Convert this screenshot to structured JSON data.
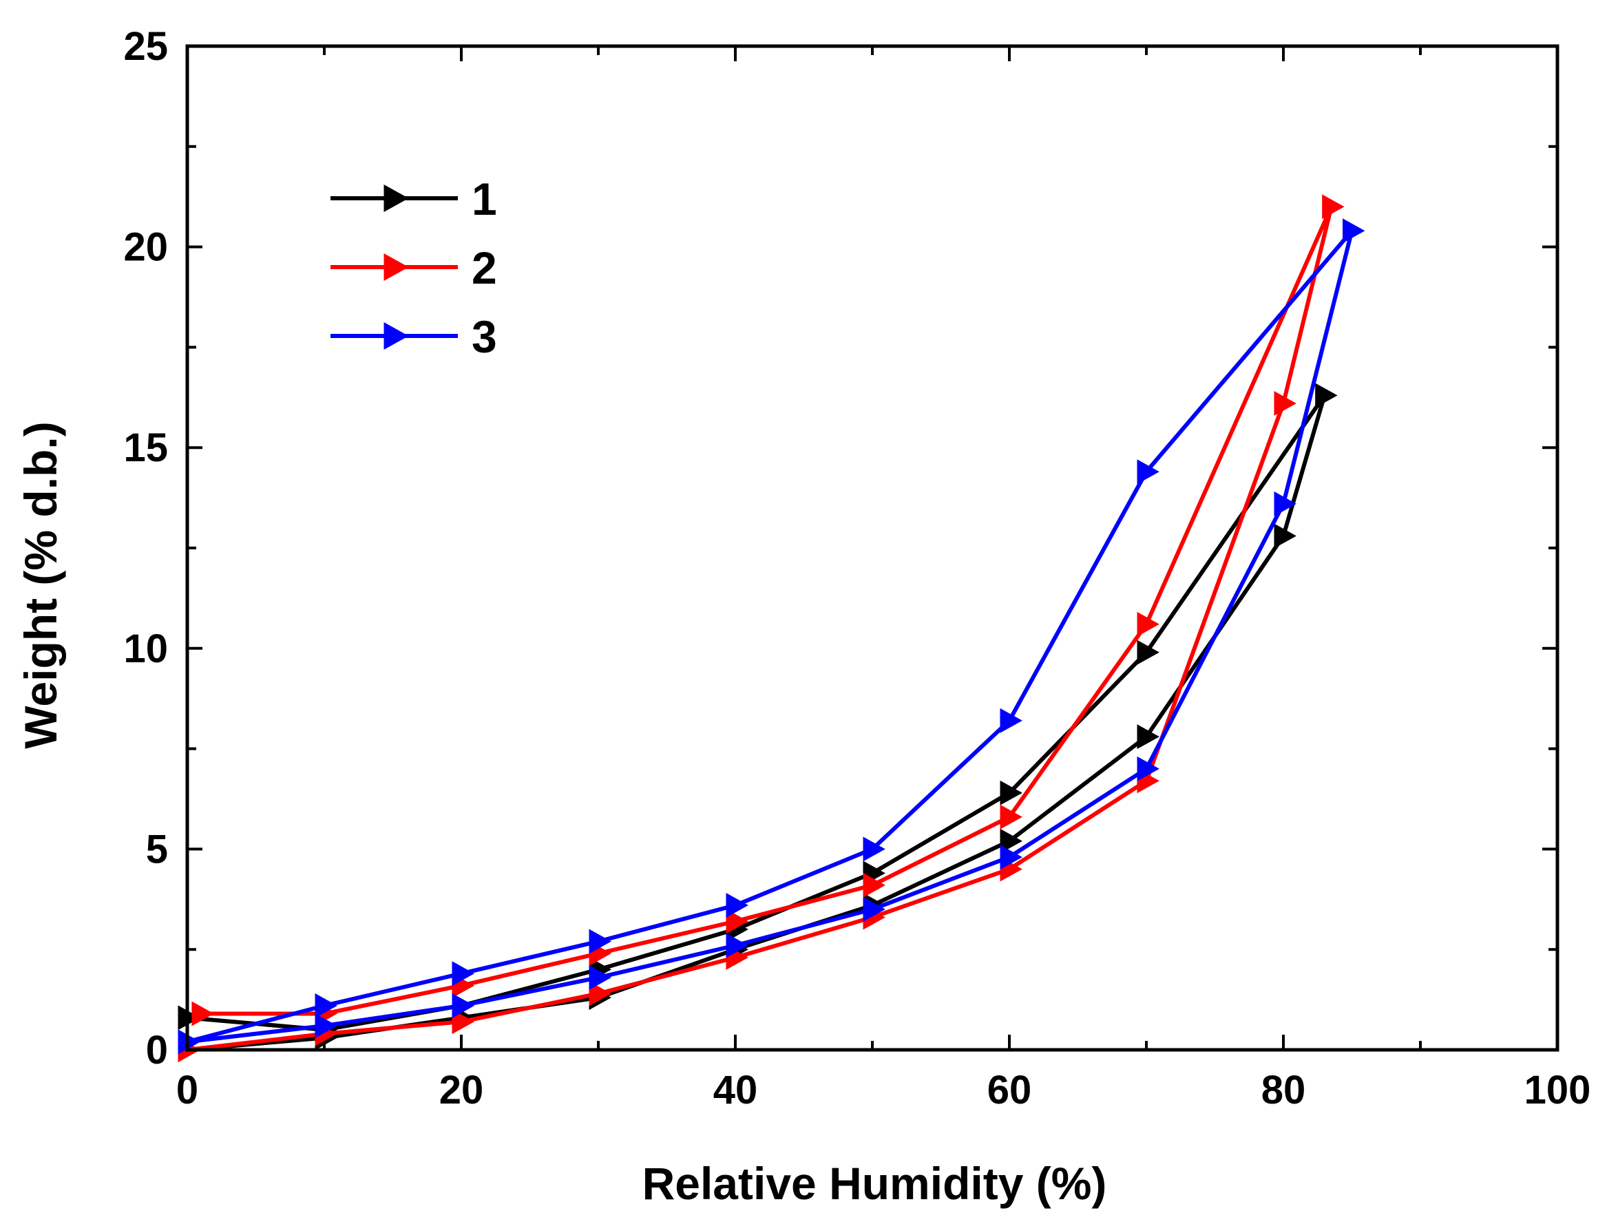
{
  "chart_data": {
    "type": "line",
    "title": "",
    "xlabel": "Relative Humidity (%)",
    "ylabel": "Weight (% d.b.)",
    "xlim": [
      0,
      100
    ],
    "ylim": [
      0,
      25
    ],
    "xticks": [
      0,
      20,
      40,
      60,
      80,
      100
    ],
    "yticks": [
      0,
      5,
      10,
      15,
      20,
      25
    ],
    "xtick_labels": [
      "0",
      "20",
      "40",
      "60",
      "80",
      "100"
    ],
    "ytick_labels": [
      "0",
      "5",
      "10",
      "15",
      "20",
      "25"
    ],
    "grid": false,
    "legend_position": "top-left",
    "marker": "right-triangle",
    "series": [
      {
        "name": "1",
        "color": "#000000",
        "x": [
          0,
          10,
          20,
          30,
          40,
          50,
          60,
          70,
          80,
          83,
          70,
          60,
          50,
          40,
          30,
          20,
          10,
          0
        ],
        "y": [
          0.0,
          0.3,
          0.8,
          1.3,
          2.5,
          3.6,
          5.2,
          7.8,
          12.8,
          16.3,
          9.9,
          6.4,
          4.4,
          3.0,
          2.0,
          1.1,
          0.5,
          0.8
        ]
      },
      {
        "name": "2",
        "color": "#ff0000",
        "x": [
          0,
          10,
          20,
          30,
          40,
          50,
          60,
          70,
          80,
          83.5,
          70,
          60,
          50,
          40,
          30,
          20,
          10,
          1
        ],
        "y": [
          0.0,
          0.4,
          0.7,
          1.4,
          2.3,
          3.3,
          4.5,
          6.7,
          16.1,
          21.0,
          10.6,
          5.8,
          4.1,
          3.2,
          2.4,
          1.6,
          0.9,
          0.9
        ]
      },
      {
        "name": "3",
        "color": "#0000ff",
        "x": [
          0,
          10,
          20,
          30,
          40,
          50,
          60,
          70,
          80,
          85,
          70,
          60,
          50,
          40,
          30,
          20,
          10,
          0
        ],
        "y": [
          0.2,
          0.6,
          1.1,
          1.8,
          2.6,
          3.5,
          4.8,
          7.0,
          13.6,
          20.4,
          14.4,
          8.2,
          5.0,
          3.6,
          2.7,
          1.9,
          1.1,
          0.2
        ]
      }
    ]
  }
}
